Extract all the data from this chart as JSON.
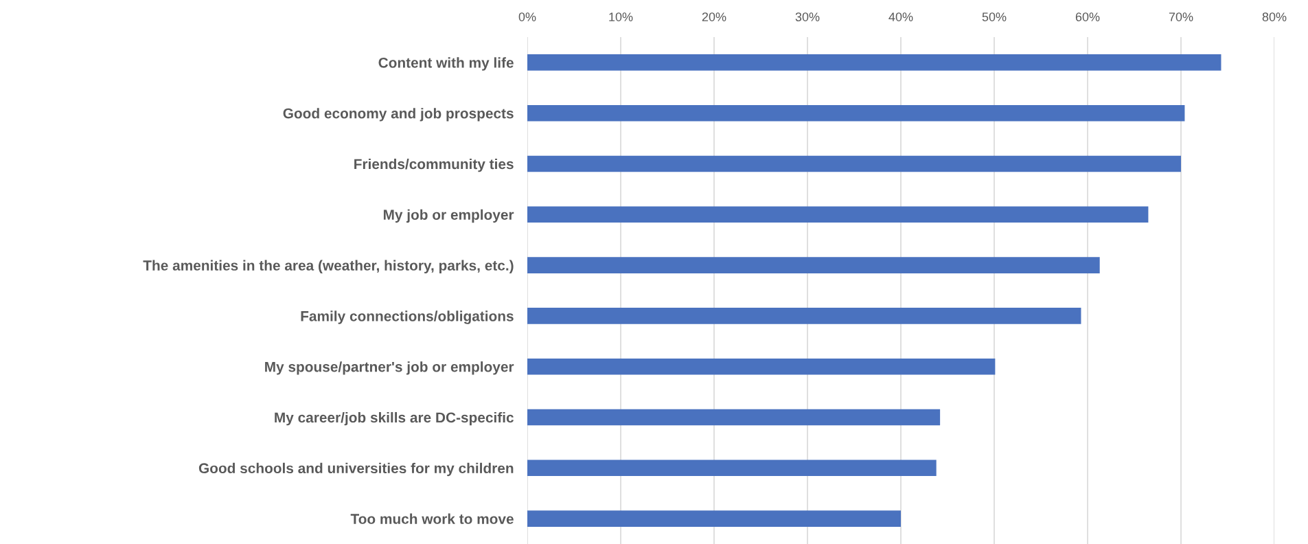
{
  "chart_data": {
    "type": "bar",
    "orientation": "horizontal",
    "categories": [
      "Content with my life",
      "Good economy and job prospects",
      "Friends/community ties",
      "My job or employer",
      "The amenities in the area (weather, history, parks, etc.)",
      "Family connections/obligations",
      "My spouse/partner's job or employer",
      "My career/job skills are DC-specific",
      "Good schools and universities for my children",
      "Too much work to move"
    ],
    "values": [
      74.3,
      70.4,
      70.0,
      66.5,
      61.3,
      59.3,
      50.1,
      44.2,
      43.8,
      40.0
    ],
    "color": "#4a72bf",
    "xlim": [
      0,
      80
    ],
    "xticks": [
      {
        "value": 0,
        "label": "0%"
      },
      {
        "value": 10,
        "label": "10%"
      },
      {
        "value": 20,
        "label": "20%"
      },
      {
        "value": 30,
        "label": "30%"
      },
      {
        "value": 40,
        "label": "40%"
      },
      {
        "value": 50,
        "label": "50%"
      },
      {
        "value": 60,
        "label": "60%"
      },
      {
        "value": 70,
        "label": "70%"
      },
      {
        "value": 80,
        "label": "80%"
      }
    ],
    "grid": "x",
    "legend": false
  }
}
